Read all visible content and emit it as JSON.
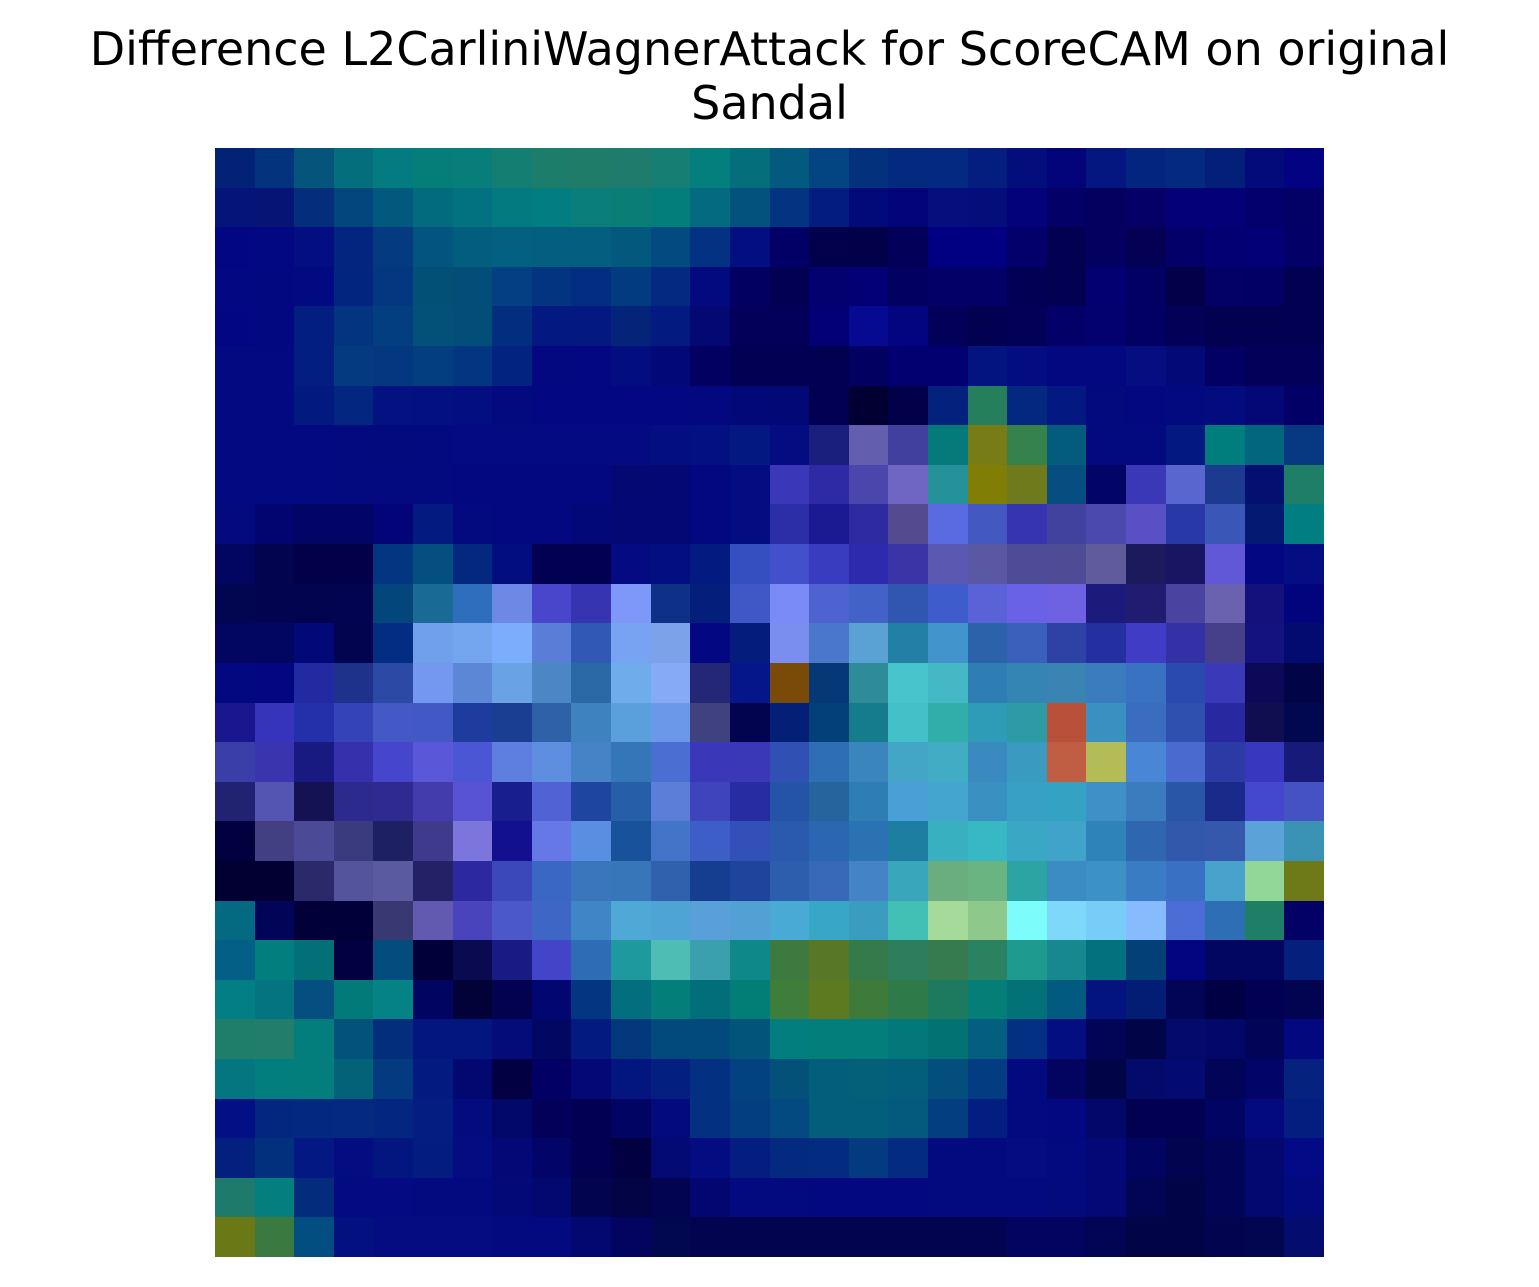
{
  "title": {
    "line1": "Difference L2CarliniWagnerAttack for ScoreCAM on original",
    "line2": "Sandal"
  },
  "chart_data": {
    "type": "heatmap",
    "rows": 28,
    "cols": 28,
    "axes": "off",
    "grid": false,
    "legend": "none",
    "colorscale": "blended heatmap overlay (dark blue to teal, green, light blue highlights)",
    "cells": [
      [
        "#022278",
        "#03337c",
        "#04547c",
        "#046e7c",
        "#037b80",
        "#057e7a",
        "#077e7a",
        "#157e72",
        "#1b7d6a",
        "#1e7c69",
        "#1f7b6b",
        "#167e72",
        "#057e7e",
        "#046e7a",
        "#045a7e",
        "#034582",
        "#03317c",
        "#032a7e",
        "#032a80",
        "#031e7e",
        "#030e7c",
        "#03047a",
        "#041680",
        "#032580",
        "#032a7e",
        "#031f7a",
        "#030a7a",
        "#030282"
      ],
      [
        "#041478",
        "#051475",
        "#042e7c",
        "#03467e",
        "#03587e",
        "#026c7e",
        "#037280",
        "#037a80",
        "#037e80",
        "#0a7e7a",
        "#0b7d77",
        "#047e7a",
        "#036a80",
        "#03527e",
        "#033482",
        "#031c80",
        "#020a7a",
        "#030478",
        "#040e7c",
        "#040e7a",
        "#03027a",
        "#030068",
        "#030060",
        "#040068",
        "#040078",
        "#030078",
        "#03006e",
        "#030066"
      ],
      [
        "#020682",
        "#020882",
        "#030e82",
        "#032580",
        "#033a80",
        "#035580",
        "#035e7e",
        "#036080",
        "#035e80",
        "#035e80",
        "#03587e",
        "#034a80",
        "#033282",
        "#030e80",
        "#020066",
        "#02004c",
        "#020048",
        "#020058",
        "#020082",
        "#020082",
        "#03006c",
        "#020050",
        "#030060",
        "#040054",
        "#03006a",
        "#030074",
        "#020074",
        "#030068"
      ],
      [
        "#020882",
        "#020880",
        "#020a82",
        "#022680",
        "#033880",
        "#035076",
        "#034e78",
        "#033f82",
        "#023480",
        "#032d80",
        "#033b80",
        "#032a80",
        "#030a80",
        "#020060",
        "#020050",
        "#030070",
        "#030076",
        "#020060",
        "#030068",
        "#030068",
        "#020054",
        "#020050",
        "#030072",
        "#030064",
        "#020048",
        "#030066",
        "#020064",
        "#020050"
      ],
      [
        "#020682",
        "#020880",
        "#021e80",
        "#033480",
        "#033f80",
        "#035078",
        "#034e78",
        "#032e80",
        "#031880",
        "#031880",
        "#032478",
        "#031a80",
        "#030872",
        "#020058",
        "#020058",
        "#030076",
        "#050a90",
        "#030480",
        "#020058",
        "#020050",
        "#030058",
        "#030068",
        "#030070",
        "#030064",
        "#030058",
        "#020050",
        "#020050",
        "#020050"
      ],
      [
        "#020a82",
        "#020a82",
        "#021e80",
        "#033a80",
        "#033880",
        "#033e80",
        "#033680",
        "#022380",
        "#030880",
        "#030882",
        "#020e80",
        "#030878",
        "#020060",
        "#020052",
        "#020052",
        "#020050",
        "#020060",
        "#020070",
        "#020070",
        "#031380",
        "#030c80",
        "#030880",
        "#030880",
        "#040e80",
        "#030a78",
        "#030064",
        "#020058",
        "#020058"
      ],
      [
        "#020a82",
        "#020a82",
        "#021a80",
        "#032680",
        "#031280",
        "#031080",
        "#030e80",
        "#030a80",
        "#030882",
        "#030882",
        "#030882",
        "#030882",
        "#030880",
        "#030878",
        "#020876",
        "#020052",
        "#020032",
        "#020048",
        "#03227d",
        "#257e5c",
        "#042880",
        "#031880",
        "#030a7e",
        "#030880",
        "#030a80",
        "#030c7e",
        "#030876",
        "#020066"
      ],
      [
        "#020a82",
        "#020a82",
        "#020a82",
        "#030a80",
        "#030a7e",
        "#030a80",
        "#030a82",
        "#030a82",
        "#030a82",
        "#030a82",
        "#030a82",
        "#030e80",
        "#031080",
        "#031880",
        "#030c80",
        "#1a1e7c",
        "#645eae",
        "#42409e",
        "#047a7b",
        "#787c16",
        "#36824c",
        "#045c7c",
        "#030a80",
        "#030a80",
        "#031880",
        "#007e7e",
        "#02667e",
        "#073882"
      ],
      [
        "#020a82",
        "#020a82",
        "#020a82",
        "#030a80",
        "#030a80",
        "#030a80",
        "#030880",
        "#030880",
        "#030880",
        "#030880",
        "#030872",
        "#030874",
        "#030880",
        "#030c80",
        "#3a38b8",
        "#2e2aa6",
        "#4a46ac",
        "#6e66c2",
        "#25929a",
        "#817e06",
        "#6e7a1c",
        "#064e80",
        "#020466",
        "#3a38b6",
        "#5a66d0",
        "#1c3a90",
        "#031070",
        "#1e7e66"
      ],
      [
        "#020a7e",
        "#020470",
        "#020466",
        "#020466",
        "#020478",
        "#031a80",
        "#030a80",
        "#030880",
        "#030880",
        "#030878",
        "#030874",
        "#030874",
        "#030880",
        "#030c80",
        "#2c2ea8",
        "#1c1a92",
        "#2e2aa0",
        "#544a90",
        "#5a6ae0",
        "#4458c2",
        "#3634b0",
        "#40429e",
        "#4b48ae",
        "#5a50c6",
        "#2838a6",
        "#3a56b6",
        "#041a72",
        "#007e82"
      ],
      [
        "#020660",
        "#020450",
        "#020048",
        "#020048",
        "#033680",
        "#044e80",
        "#042880",
        "#030e7e",
        "#020050",
        "#020052",
        "#030a82",
        "#030e80",
        "#031a80",
        "#3450c0",
        "#4250cc",
        "#3a3cc0",
        "#2e2aad",
        "#3a34a6",
        "#5a58b0",
        "#5a58a2",
        "#4e4c96",
        "#4f4c96",
        "#605c9c",
        "#1a1a5c",
        "#181662",
        "#6058d6",
        "#030882",
        "#040e82"
      ],
      [
        "#020650",
        "#020450",
        "#020450",
        "#020452",
        "#03467c",
        "#1a6a96",
        "#2e6ebc",
        "#6e88e6",
        "#4a46cc",
        "#3634b0",
        "#7e98fa",
        "#0e3086",
        "#041e7c",
        "#4058c6",
        "#7a8af6",
        "#4e62d0",
        "#4262c8",
        "#3056b2",
        "#3e5ccc",
        "#5a62d8",
        "#6a62e6",
        "#6f62e2",
        "#1c1a7a",
        "#201c70",
        "#4a44a0",
        "#6a62ae",
        "#14107c",
        "#02047e"
      ],
      [
        "#020660",
        "#020660",
        "#020878",
        "#020450",
        "#032d82",
        "#70a0ec",
        "#74a6f0",
        "#7cacfc",
        "#5a7ed8",
        "#3058b4",
        "#78a2f2",
        "#7ca2ea",
        "#030882",
        "#041c7c",
        "#7a8ef0",
        "#4a76cc",
        "#5aa2d4",
        "#2280a6",
        "#4294cc",
        "#2c62aa",
        "#3a60bc",
        "#2e42a6",
        "#2430a0",
        "#403cc6",
        "#3430a6",
        "#463f8a",
        "#14127e",
        "#030a70"
      ],
      [
        "#020880",
        "#030680",
        "#222aa2",
        "#1e328c",
        "#2a4aa6",
        "#7498f0",
        "#5c86d6",
        "#6aa2e6",
        "#4c86c4",
        "#2a68a6",
        "#6eacec",
        "#86aaf6",
        "#242676",
        "#04168a",
        "#7a4a08",
        "#043876",
        "#2e8c98",
        "#48c4cc",
        "#44b8c4",
        "#2e7eb4",
        "#3484b4",
        "#3a84b4",
        "#3a7cbe",
        "#3a72c2",
        "#2a4ab0",
        "#3a3ab8",
        "#0c0a58",
        "#020448"
      ],
      [
        "#1a168e",
        "#3634ba",
        "#2430aa",
        "#3444b8",
        "#4458c6",
        "#4258c4",
        "#1e3c9e",
        "#1a3e92",
        "#2e62a8",
        "#3e82c0",
        "#5aa0dc",
        "#6c98ea",
        "#404280",
        "#020450",
        "#041f76",
        "#033f78",
        "#157c8e",
        "#44c0c8",
        "#32aeaa",
        "#2e9cb6",
        "#2e9aa6",
        "#b8503a",
        "#3a90c0",
        "#3a6cc0",
        "#3050b0",
        "#2828a0",
        "#0e0e50",
        "#020850"
      ],
      [
        "#3a3ea8",
        "#3a34ae",
        "#181a82",
        "#3630ac",
        "#4646cc",
        "#5a58d8",
        "#4a56d4",
        "#5e7ee0",
        "#5e8ee0",
        "#4682c6",
        "#3476b8",
        "#4a6ed2",
        "#3a38b8",
        "#3a38b6",
        "#3050b4",
        "#2e6eb4",
        "#3a86bc",
        "#44a6c6",
        "#42acc4",
        "#3a8ac0",
        "#3a9ac0",
        "#c05e44",
        "#b4bc58",
        "#4a86d6",
        "#4a6ad0",
        "#2c3aa6",
        "#3838be",
        "#181a7a"
      ],
      [
        "#222272",
        "#5454b2",
        "#141252",
        "#2c2a8c",
        "#2e2a92",
        "#423cac",
        "#5852d4",
        "#181e8e",
        "#5062d4",
        "#1e46a0",
        "#265ea8",
        "#5c7ed8",
        "#3e44bc",
        "#282ca2",
        "#2454a8",
        "#25649c",
        "#2e7eb4",
        "#4aa0d6",
        "#44a6ce",
        "#3a90c0",
        "#38a0c4",
        "#34a2c2",
        "#3e90c6",
        "#3a7cbe",
        "#2a56a8",
        "#1a2a8a",
        "#4448cc",
        "#4452c2"
      ],
      [
        "#02003e",
        "#424082",
        "#4a4a96",
        "#3a3a7e",
        "#1e2064",
        "#3e3a8c",
        "#7c76dc",
        "#12108e",
        "#6678e6",
        "#5a8ee0",
        "#18529a",
        "#4274c8",
        "#3c5ec6",
        "#3250b8",
        "#2a5aac",
        "#2a66b2",
        "#2a72b2",
        "#1e7ea2",
        "#38b0c0",
        "#38b8c4",
        "#3aa8c4",
        "#40a4ca",
        "#2e84b8",
        "#2e66b0",
        "#3258ac",
        "#3658ac",
        "#5aa2d8",
        "#3a92b4"
      ],
      [
        "#020032",
        "#020032",
        "#2a2a6a",
        "#54549c",
        "#5a5aa0",
        "#242266",
        "#2c28a0",
        "#3a48ba",
        "#3a66c4",
        "#3a76bc",
        "#3876ba",
        "#2e62ac",
        "#163e90",
        "#1e449c",
        "#2c5eae",
        "#3868b8",
        "#4484c6",
        "#3aa6bc",
        "#6aae80",
        "#6ab482",
        "#2ca4a4",
        "#3c8cc4",
        "#3c92c4",
        "#3a7cc4",
        "#3a70c4",
        "#48a2cc",
        "#92d698",
        "#6e7a18"
      ],
      [
        "#046a82",
        "#020458",
        "#020038",
        "#020038",
        "#383872",
        "#625ab0",
        "#4a44bc",
        "#4a58c8",
        "#3e66c4",
        "#3e86c6",
        "#50a8d6",
        "#4ea4d4",
        "#5aa0d8",
        "#52a0d4",
        "#4aaad6",
        "#38a6c6",
        "#3a9cbe",
        "#42c0b6",
        "#a6da9a",
        "#8ec88a",
        "#7cfcfa",
        "#7ed8fa",
        "#78ccf8",
        "#86bcfe",
        "#4c6cd6",
        "#2e6eb4",
        "#1e7e66",
        "#030066"
      ],
      [
        "#035f86",
        "#037e7e",
        "#037078",
        "#020040",
        "#034c7e",
        "#020038",
        "#0a0a50",
        "#1a1a84",
        "#4444c8",
        "#2e6cb6",
        "#1e9a9e",
        "#4ebeb4",
        "#3aa0ae",
        "#0e8888",
        "#3e7a40",
        "#587828",
        "#347a4a",
        "#2e7e5e",
        "#367a50",
        "#2a8260",
        "#1e9a8e",
        "#16888e",
        "#03727e",
        "#034078",
        "#020480",
        "#020660",
        "#020660",
        "#04207c"
      ],
      [
        "#037e84",
        "#037480",
        "#044e80",
        "#037a7a",
        "#048284",
        "#020462",
        "#020238",
        "#020250",
        "#020670",
        "#033680",
        "#026e7e",
        "#037e78",
        "#026e7a",
        "#037e76",
        "#3e7e3a",
        "#5e7a20",
        "#3e7a3a",
        "#2e7a48",
        "#1e7a5e",
        "#047e76",
        "#037278",
        "#035a80",
        "#031480",
        "#031c74",
        "#020454",
        "#020044",
        "#020052",
        "#020452"
      ],
      [
        "#1e7e6a",
        "#227e6a",
        "#037e7c",
        "#03527c",
        "#032e7c",
        "#031680",
        "#031680",
        "#030c78",
        "#020862",
        "#031a80",
        "#03387c",
        "#034a7c",
        "#034a7c",
        "#03547a",
        "#037e7e",
        "#037e7a",
        "#037e7a",
        "#03787a",
        "#037272",
        "#035e80",
        "#033082",
        "#030e80",
        "#020456",
        "#020448",
        "#030a6a",
        "#030868",
        "#020458",
        "#03087e"
      ],
      [
        "#037680",
        "#037e7e",
        "#037e7c",
        "#036278",
        "#033a80",
        "#031a80",
        "#030870",
        "#020042",
        "#020064",
        "#030876",
        "#031680",
        "#032080",
        "#033080",
        "#034280",
        "#035078",
        "#035e7c",
        "#036078",
        "#035e7c",
        "#034e7c",
        "#033c80",
        "#030a80",
        "#020460",
        "#020448",
        "#030a6a",
        "#030a72",
        "#020458",
        "#030468",
        "#04227e"
      ],
      [
        "#030f84",
        "#03267e",
        "#032880",
        "#032a7e",
        "#032680",
        "#031e80",
        "#030c7c",
        "#020868",
        "#020058",
        "#020050",
        "#020464",
        "#030a7c",
        "#033080",
        "#033e80",
        "#034a80",
        "#035e7c",
        "#035e7c",
        "#035a7c",
        "#033e80",
        "#031e80",
        "#030a80",
        "#030880",
        "#030868",
        "#020050",
        "#020050",
        "#020464",
        "#030a80",
        "#041e80"
      ],
      [
        "#03207e",
        "#03307c",
        "#031882",
        "#030c80",
        "#031680",
        "#031c80",
        "#030c80",
        "#030876",
        "#020468",
        "#020050",
        "#020040",
        "#030a74",
        "#030c80",
        "#031e80",
        "#032a7e",
        "#032c80",
        "#033a80",
        "#032c80",
        "#030a80",
        "#030a80",
        "#030c80",
        "#030a80",
        "#030876",
        "#020462",
        "#020450",
        "#020458",
        "#030870",
        "#030a86"
      ],
      [
        "#1e7a6a",
        "#047e7e",
        "#032c7c",
        "#030a82",
        "#030a82",
        "#030a80",
        "#030a80",
        "#030a78",
        "#030870",
        "#020450",
        "#020446",
        "#020452",
        "#030670",
        "#030a80",
        "#030a80",
        "#030880",
        "#030880",
        "#030880",
        "#030a80",
        "#030a80",
        "#030a80",
        "#030a7c",
        "#030876",
        "#020454",
        "#020448",
        "#020458",
        "#030870",
        "#030a7c"
      ],
      [
        "#6a7816",
        "#3a7a40",
        "#024e80",
        "#031080",
        "#030c80",
        "#030c80",
        "#030c80",
        "#030a80",
        "#030a80",
        "#030870",
        "#020460",
        "#020850",
        "#020450",
        "#020450",
        "#020450",
        "#020450",
        "#020450",
        "#020450",
        "#020450",
        "#020452",
        "#020460",
        "#020460",
        "#020454",
        "#020448",
        "#020448",
        "#020450",
        "#020650",
        "#040c6e"
      ]
    ]
  }
}
